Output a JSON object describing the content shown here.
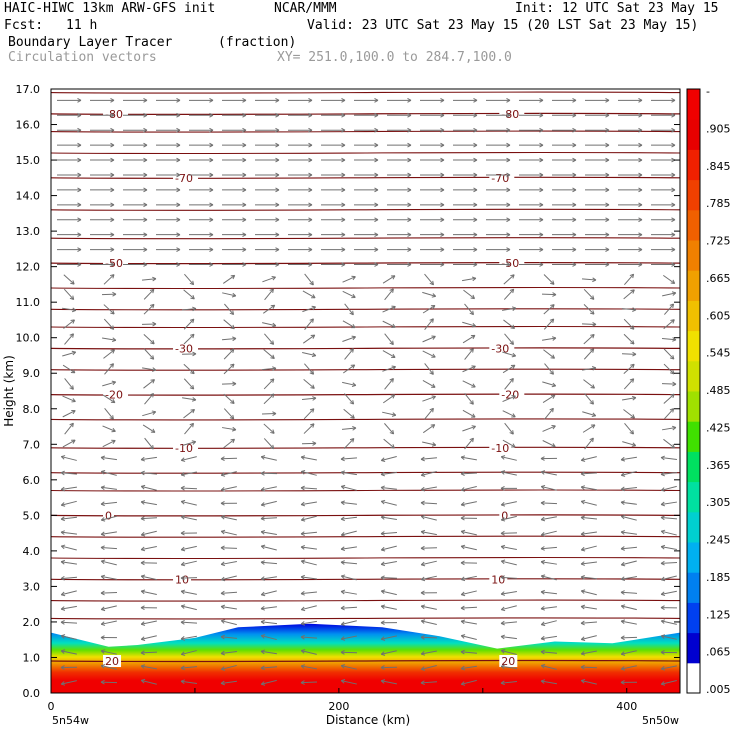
{
  "header": {
    "model": "HAIC-HIWC 13km ARW-GFS init",
    "org": "NCAR/MMM",
    "init": "Init: 12 UTC Sat 23 May 15",
    "fcst_label": "Fcst:",
    "fcst_value": "11 h",
    "valid": "Valid: 23 UTC Sat 23 May 15 (20 LST Sat 23 May 15)",
    "field": "Boundary Layer Tracer",
    "units": "(fraction)",
    "overlay": "Circulation vectors",
    "xy": "XY= 251.0,100.0 to 284.7,100.0"
  },
  "colors": {
    "contour": "#7a1010",
    "vector": "#707070",
    "cb": [
      "#ffffff",
      "#0000d0",
      "#0040f0",
      "#0080f0",
      "#00b0f0",
      "#00d0d0",
      "#00e0a0",
      "#00e060",
      "#40e000",
      "#a0e000",
      "#d0e000",
      "#f0e000",
      "#f0c000",
      "#f0a000",
      "#f08000",
      "#f06000",
      "#f04000",
      "#f02000",
      "#e80000",
      "#f00000"
    ]
  },
  "chart_data": {
    "type": "heatmap",
    "xlabel": "Distance (km)",
    "ylabel": "Height (km)",
    "xlim": [
      0,
      437
    ],
    "ylim": [
      0,
      17
    ],
    "x_ticks": [
      0,
      200,
      400
    ],
    "x_tick_labels": [
      "0",
      "200",
      "400"
    ],
    "y_ticks": [
      0,
      1,
      2,
      3,
      4,
      5,
      6,
      7,
      8,
      9,
      10,
      11,
      12,
      13,
      14,
      15,
      16,
      17
    ],
    "y_tick_labels": [
      "0.0",
      "1.0",
      "2.0",
      "3.0",
      "4.0",
      "5.0",
      "6.0",
      "7.0",
      "8.0",
      "9.0",
      "10.0",
      "11.0",
      "12.0",
      "13.0",
      "14.0",
      "15.0",
      "16.0",
      "17.0"
    ],
    "x_end_labels": [
      "5n54w",
      "5n50w"
    ],
    "colorbar_labels": [
      "-",
      ".905",
      ".845",
      ".785",
      ".725",
      ".665",
      ".605",
      ".545",
      ".485",
      ".425",
      ".365",
      ".305",
      ".245",
      ".185",
      ".125",
      ".065",
      ".005"
    ],
    "pbl_top_km": [
      {
        "x": 0,
        "y": 1.7
      },
      {
        "x": 40,
        "y": 1.3
      },
      {
        "x": 60,
        "y": 1.35
      },
      {
        "x": 100,
        "y": 1.55
      },
      {
        "x": 130,
        "y": 1.85
      },
      {
        "x": 180,
        "y": 1.95
      },
      {
        "x": 230,
        "y": 1.85
      },
      {
        "x": 270,
        "y": 1.6
      },
      {
        "x": 310,
        "y": 1.25
      },
      {
        "x": 350,
        "y": 1.45
      },
      {
        "x": 390,
        "y": 1.4
      },
      {
        "x": 437,
        "y": 1.7
      }
    ],
    "temperature_contours": [
      {
        "label": "-80",
        "y": 16.3
      },
      {
        "label": "-70",
        "y": 14.5
      },
      {
        "label": "-50",
        "y": 12.1
      },
      {
        "label": "-30",
        "y": 9.7
      },
      {
        "label": "-20",
        "y": 8.4
      },
      {
        "label": "-10",
        "y": 6.9
      },
      {
        "label": "0",
        "y": 5.0
      },
      {
        "label": "10",
        "y": 3.2
      },
      {
        "label": "20",
        "y": 0.9
      }
    ]
  }
}
